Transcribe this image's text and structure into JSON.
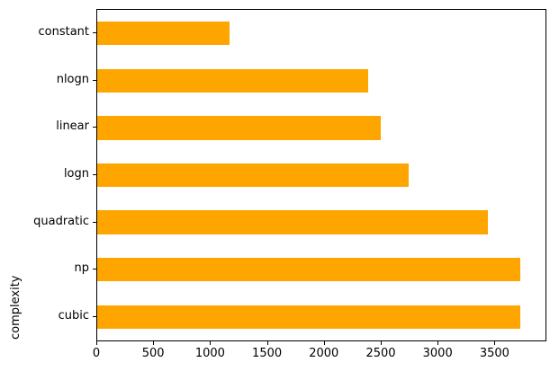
{
  "chart_data": {
    "type": "bar",
    "orientation": "horizontal",
    "title": "",
    "xlabel": "",
    "ylabel": "complexity",
    "categories": [
      "constant",
      "nlogn",
      "linear",
      "logn",
      "quadratic",
      "np",
      "cubic"
    ],
    "values": [
      1160,
      2380,
      2490,
      2740,
      3430,
      3720,
      3720
    ],
    "bar_color": "#FFA500",
    "axis_color": "#000000",
    "text_color": "#000000",
    "xlim": [
      0,
      3940
    ],
    "xticks": [
      0,
      500,
      1000,
      1500,
      2000,
      2500,
      3000,
      3500
    ],
    "grid": false,
    "legend_position": "none",
    "bar_fraction": 0.5
  }
}
